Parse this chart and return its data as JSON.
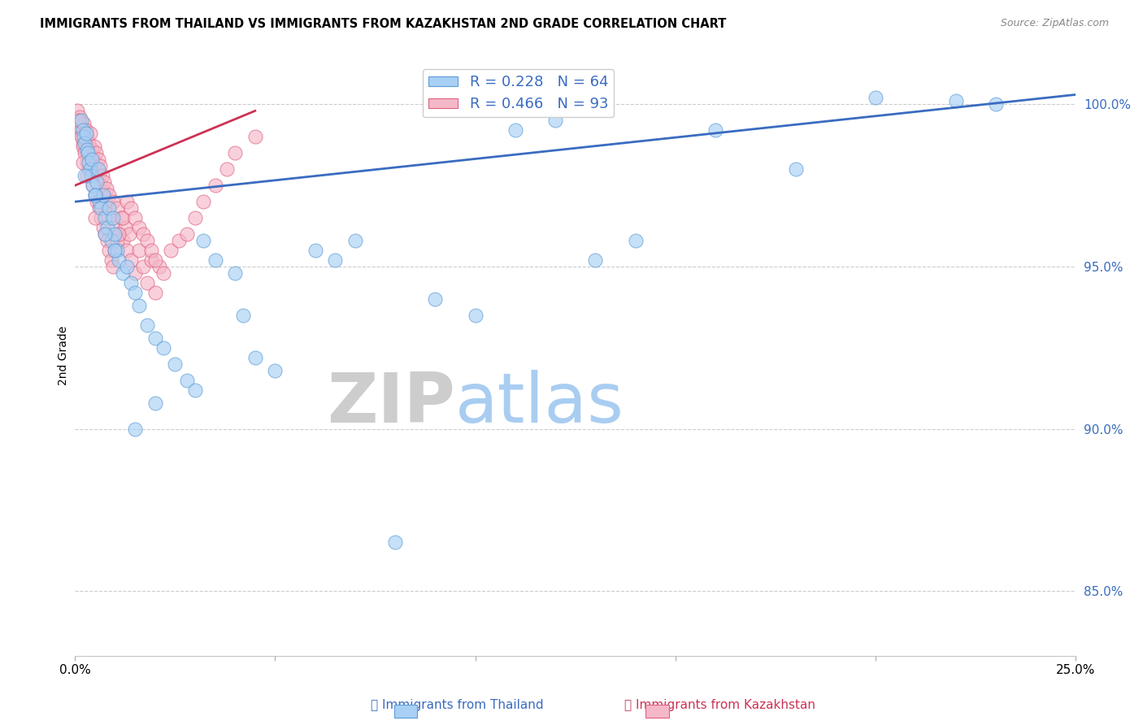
{
  "title": "IMMIGRANTS FROM THAILAND VS IMMIGRANTS FROM KAZAKHSTAN 2ND GRADE CORRELATION CHART",
  "source": "Source: ZipAtlas.com",
  "ylabel": "2nd Grade",
  "xlim": [
    0.0,
    25.0
  ],
  "ylim": [
    83.0,
    101.5
  ],
  "yticks": [
    85.0,
    90.0,
    95.0,
    100.0
  ],
  "ytick_labels": [
    "85.0%",
    "90.0%",
    "95.0%",
    "100.0%"
  ],
  "legend_r1": "R = 0.228",
  "legend_n1": "N = 64",
  "legend_r2": "R = 0.466",
  "legend_n2": "N = 93",
  "color_thailand_fill": "#A8D0F5",
  "color_thailand_edge": "#5B9BD5",
  "color_kazakhstan_fill": "#F5B8C8",
  "color_kazakhstan_edge": "#E06080",
  "color_trendline_thailand": "#3A6CC0",
  "color_trendline_kazakhstan": "#CC3355",
  "watermark_zip": "ZIP",
  "watermark_atlas": "atlas",
  "thailand_x": [
    0.15,
    0.2,
    0.22,
    0.25,
    0.28,
    0.3,
    0.32,
    0.35,
    0.38,
    0.4,
    0.42,
    0.45,
    0.5,
    0.55,
    0.58,
    0.6,
    0.65,
    0.7,
    0.75,
    0.8,
    0.85,
    0.9,
    0.95,
    1.0,
    1.05,
    1.1,
    1.2,
    1.3,
    1.4,
    1.5,
    1.6,
    1.8,
    2.0,
    2.2,
    2.5,
    2.8,
    3.0,
    3.2,
    3.5,
    4.0,
    4.2,
    4.5,
    5.0,
    6.0,
    6.5,
    7.0,
    8.0,
    9.0,
    10.0,
    11.0,
    12.0,
    13.0,
    14.0,
    16.0,
    18.0,
    20.0,
    22.0,
    23.0,
    0.25,
    0.5,
    0.75,
    1.0,
    1.5,
    2.0
  ],
  "thailand_y": [
    99.5,
    99.2,
    99.0,
    98.8,
    99.1,
    98.6,
    98.5,
    98.2,
    98.0,
    97.8,
    98.3,
    97.5,
    97.2,
    97.6,
    98.0,
    97.0,
    96.8,
    97.2,
    96.5,
    96.2,
    96.8,
    95.8,
    96.5,
    96.0,
    95.5,
    95.2,
    94.8,
    95.0,
    94.5,
    94.2,
    93.8,
    93.2,
    92.8,
    92.5,
    92.0,
    91.5,
    91.2,
    95.8,
    95.2,
    94.8,
    93.5,
    92.2,
    91.8,
    95.5,
    95.2,
    95.8,
    86.5,
    94.0,
    93.5,
    99.2,
    99.5,
    95.2,
    95.8,
    99.2,
    98.0,
    100.2,
    100.1,
    100.0,
    97.8,
    97.2,
    96.0,
    95.5,
    90.0,
    90.8
  ],
  "kazakhstan_x": [
    0.05,
    0.08,
    0.1,
    0.12,
    0.15,
    0.18,
    0.2,
    0.22,
    0.25,
    0.28,
    0.3,
    0.32,
    0.35,
    0.38,
    0.4,
    0.42,
    0.45,
    0.48,
    0.5,
    0.52,
    0.55,
    0.58,
    0.6,
    0.62,
    0.65,
    0.68,
    0.7,
    0.72,
    0.75,
    0.78,
    0.8,
    0.85,
    0.9,
    0.95,
    1.0,
    1.05,
    1.1,
    1.15,
    1.2,
    1.25,
    1.3,
    1.35,
    1.4,
    1.5,
    1.6,
    1.7,
    1.8,
    1.9,
    2.0,
    2.1,
    2.2,
    2.4,
    2.6,
    2.8,
    3.0,
    3.2,
    3.5,
    3.8,
    4.0,
    4.5,
    0.1,
    0.15,
    0.2,
    0.25,
    0.3,
    0.35,
    0.4,
    0.45,
    0.5,
    0.55,
    0.6,
    0.65,
    0.7,
    0.75,
    0.8,
    0.85,
    0.9,
    0.95,
    1.0,
    1.05,
    1.1,
    1.2,
    1.3,
    1.4,
    1.5,
    1.6,
    1.7,
    1.8,
    1.9,
    2.0,
    0.2,
    0.3,
    0.5
  ],
  "kazakhstan_y": [
    99.8,
    99.5,
    99.3,
    99.6,
    99.2,
    99.0,
    98.8,
    99.4,
    98.6,
    99.2,
    99.0,
    98.5,
    98.8,
    99.1,
    98.3,
    98.6,
    98.4,
    98.7,
    98.2,
    98.5,
    98.0,
    98.3,
    97.8,
    98.1,
    97.5,
    97.8,
    97.3,
    97.6,
    97.0,
    97.4,
    96.8,
    97.2,
    96.5,
    97.0,
    96.2,
    96.8,
    96.0,
    96.5,
    95.8,
    96.2,
    95.5,
    96.0,
    95.2,
    94.8,
    95.5,
    95.0,
    94.5,
    95.2,
    94.2,
    95.0,
    94.8,
    95.5,
    95.8,
    96.0,
    96.5,
    97.0,
    97.5,
    98.0,
    98.5,
    99.0,
    99.5,
    99.0,
    98.7,
    98.5,
    98.2,
    98.0,
    97.8,
    97.5,
    97.2,
    97.0,
    96.8,
    96.5,
    96.2,
    96.0,
    95.8,
    95.5,
    95.2,
    95.0,
    95.5,
    95.8,
    96.0,
    96.5,
    97.0,
    96.8,
    96.5,
    96.2,
    96.0,
    95.8,
    95.5,
    95.2,
    98.2,
    97.8,
    96.5
  ]
}
